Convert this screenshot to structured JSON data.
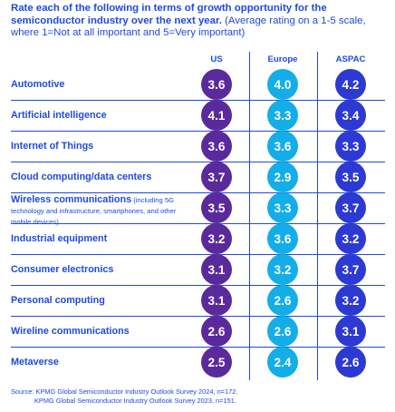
{
  "title_bold": "Rate each of the following in terms of growth opportunity for the semiconductor industry over the next year.",
  "title_light": " (Average rating on a 1-5 scale, where 1=Not at all important and 5=Very important)",
  "colors": {
    "US": "#5a2a9c",
    "Europe": "#13aee8",
    "ASPAC": "#2d39d3",
    "text": "#1e49e2"
  },
  "chart_data": {
    "type": "table",
    "columns": [
      "US",
      "Europe",
      "ASPAC"
    ],
    "rows": [
      {
        "label": "Automotive",
        "note": "",
        "values": [
          "3.6",
          "4.0",
          "4.2"
        ]
      },
      {
        "label": "Artificial intelligence",
        "note": "",
        "values": [
          "4.1",
          "3.3",
          "3.4"
        ]
      },
      {
        "label": "Internet of Things",
        "note": "",
        "values": [
          "3.6",
          "3.6",
          "3.3"
        ]
      },
      {
        "label": "Cloud computing/data centers",
        "note": "",
        "values": [
          "3.7",
          "2.9",
          "3.5"
        ]
      },
      {
        "label": "Wireless communications",
        "note": " (including 5G technology and infrastructure, smartphones, and other mobile devices)",
        "values": [
          "3.5",
          "3.3",
          "3.7"
        ]
      },
      {
        "label": "Industrial equipment",
        "note": "",
        "values": [
          "3.2",
          "3.6",
          "3.2"
        ]
      },
      {
        "label": "Consumer electronics",
        "note": "",
        "values": [
          "3.1",
          "3.2",
          "3.7"
        ]
      },
      {
        "label": "Personal computing",
        "note": "",
        "values": [
          "3.1",
          "2.6",
          "3.2"
        ]
      },
      {
        "label": "Wireline communications",
        "note": "",
        "values": [
          "2.6",
          "2.6",
          "3.1"
        ]
      },
      {
        "label": "Metaverse",
        "note": "",
        "values": [
          "2.5",
          "2.4",
          "2.6"
        ]
      }
    ]
  },
  "source_line1": "Source: KPMG Global Semiconductor Industry Outlook Survey 2024, n=172.",
  "source_line2": "KPMG Global Semiconductor Industry Outlook Survey 2023, n=151."
}
